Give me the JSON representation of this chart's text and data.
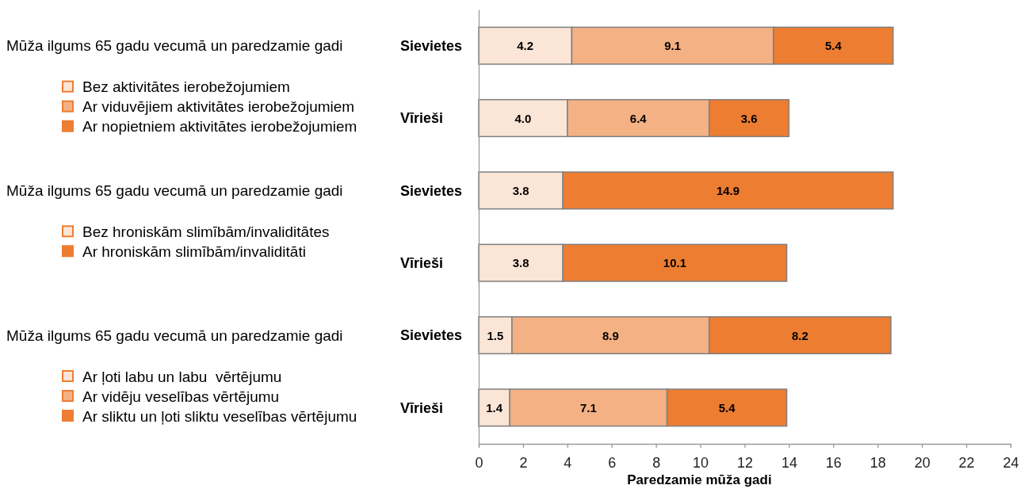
{
  "chart_data": [
    {
      "type": "bar",
      "orientation": "horizontal",
      "stacked": true,
      "title": "Mūža ilgums 65 gadu vecumā un paredzamie gadi",
      "categories": [
        "Sievietes",
        "Vīrieši"
      ],
      "series": [
        {
          "name": "Bez aktivitātes ierobežojumiem",
          "color": "#fbe5d6",
          "values": [
            4.2,
            4.0
          ],
          "value_labels": [
            "4.2",
            "4.0"
          ]
        },
        {
          "name": "Ar viduvējiem aktivitātes ierobežojumiem",
          "color": "#f4b183",
          "values": [
            9.1,
            6.4
          ],
          "value_labels": [
            "9.1",
            "6.4"
          ]
        },
        {
          "name": "Ar nopietniem aktivitātes ierobežojumiem",
          "color": "#ed7d31",
          "values": [
            5.4,
            3.6
          ],
          "value_labels": [
            "5.4",
            "3.6"
          ]
        }
      ],
      "xlim": [
        0,
        24
      ],
      "tick_labels": "y",
      "legend": "left"
    },
    {
      "type": "bar",
      "orientation": "horizontal",
      "stacked": true,
      "title": "Mūža ilgums 65 gadu vecumā un paredzamie gadi",
      "categories": [
        "Sievietes",
        "Vīrieši"
      ],
      "series": [
        {
          "name": "Bez hroniskām slimībām/invaliditātes",
          "color": "#fbe5d6",
          "values": [
            3.8,
            3.8
          ],
          "value_labels": [
            "3.8",
            "3.8"
          ]
        },
        {
          "name": "Ar hroniskām slimībām/invaliditāti",
          "color": "#ed7d31",
          "values": [
            14.9,
            10.1
          ],
          "value_labels": [
            "14.9",
            "10.1"
          ]
        }
      ],
      "xlim": [
        0,
        24
      ],
      "tick_labels": "y",
      "legend": "left"
    },
    {
      "type": "bar",
      "orientation": "horizontal",
      "stacked": true,
      "title": "Mūža ilgums 65 gadu vecumā un paredzamie gadi",
      "xlabel": "Paredzamie mūža gadi",
      "categories": [
        "Sievietes",
        "Vīrieši"
      ],
      "series": [
        {
          "name": "Ar ļoti labu un labu  vērtējumu",
          "color": "#fbe5d6",
          "values": [
            1.5,
            1.4
          ],
          "value_labels": [
            "1.5",
            "1.4"
          ]
        },
        {
          "name": "Ar vidēju veselības vērtējumu",
          "color": "#f4b183",
          "values": [
            8.9,
            7.1
          ],
          "value_labels": [
            "8.9",
            "7.1"
          ]
        },
        {
          "name": "Ar sliktu un ļoti sliktu veselības vērtējumu",
          "color": "#ed7d31",
          "values": [
            8.2,
            5.4
          ],
          "value_labels": [
            "8.2",
            "5.4"
          ]
        }
      ],
      "xlim": [
        0,
        24
      ],
      "xticks": [
        0,
        2,
        4,
        6,
        8,
        10,
        12,
        14,
        16,
        18,
        20,
        22,
        24
      ],
      "legend": "left"
    }
  ]
}
